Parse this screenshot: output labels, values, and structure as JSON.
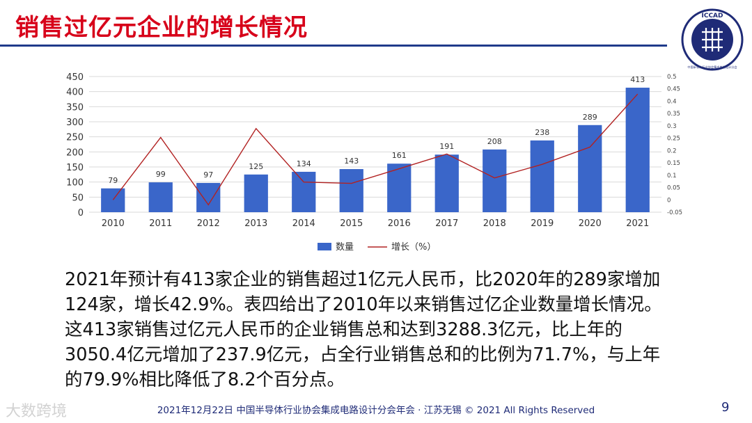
{
  "slide": {
    "title": "销售过亿元企业的增长情况",
    "logo_text": "ICCAD",
    "logo_subtext": "中国半导体行业协会集成电路设计分会",
    "body_lines": [
      "2021年预计有413家企业的销售超过1亿元人民币，比2020年的289家增加",
      "124家，增长42.9%。表四给出了2010年以来销售过亿企业数量增长情况。",
      "这413家销售过亿元人民币的企业销售总和达到3288.3亿元，比上年的",
      "3050.4亿元增加了237.9亿元，占全行业销售总和的比例为71.7%，与上年",
      "的79.9%相比降低了8.2个百分点。"
    ],
    "footer": "2021年12月22日 中国半导体行业协会集成电路设计分会年会 · 江苏无锡 © 2021 All Rights Reserved",
    "page_number": "9",
    "watermark": "大数跨境",
    "colors": {
      "title": "#d7001a",
      "rule": "#1f3a8a",
      "bar": "#3a66c9",
      "line": "#b22222"
    }
  },
  "chart_data": {
    "type": "bar",
    "categories": [
      "2010",
      "2011",
      "2012",
      "2013",
      "2014",
      "2015",
      "2016",
      "2017",
      "2018",
      "2019",
      "2020",
      "2021"
    ],
    "series": [
      {
        "name": "数量",
        "type": "bar",
        "axis": "left",
        "values": [
          79,
          99,
          97,
          125,
          134,
          143,
          161,
          191,
          208,
          238,
          289,
          413
        ]
      },
      {
        "name": "增长（%）",
        "type": "line",
        "axis": "right",
        "values": [
          0.0,
          0.253,
          -0.02,
          0.289,
          0.072,
          0.067,
          0.126,
          0.186,
          0.089,
          0.144,
          0.214,
          0.429
        ]
      }
    ],
    "ylim_left": [
      0,
      450
    ],
    "yticks_left": [
      "0",
      "50",
      "100",
      "150",
      "200",
      "250",
      "300",
      "350",
      "400",
      "450"
    ],
    "ylim_right": [
      -0.05,
      0.5
    ],
    "yticks_right": [
      "-0.05",
      "0",
      "0.05",
      "0.1",
      "0.15",
      "0.2",
      "0.25",
      "0.3",
      "0.35",
      "0.4",
      "0.45",
      "0.5"
    ],
    "data_labels": [
      "79",
      "99",
      "97",
      "125",
      "134",
      "143",
      "161",
      "191",
      "208",
      "238",
      "289",
      "413"
    ],
    "grid": true,
    "legend_placement": "bottom"
  }
}
